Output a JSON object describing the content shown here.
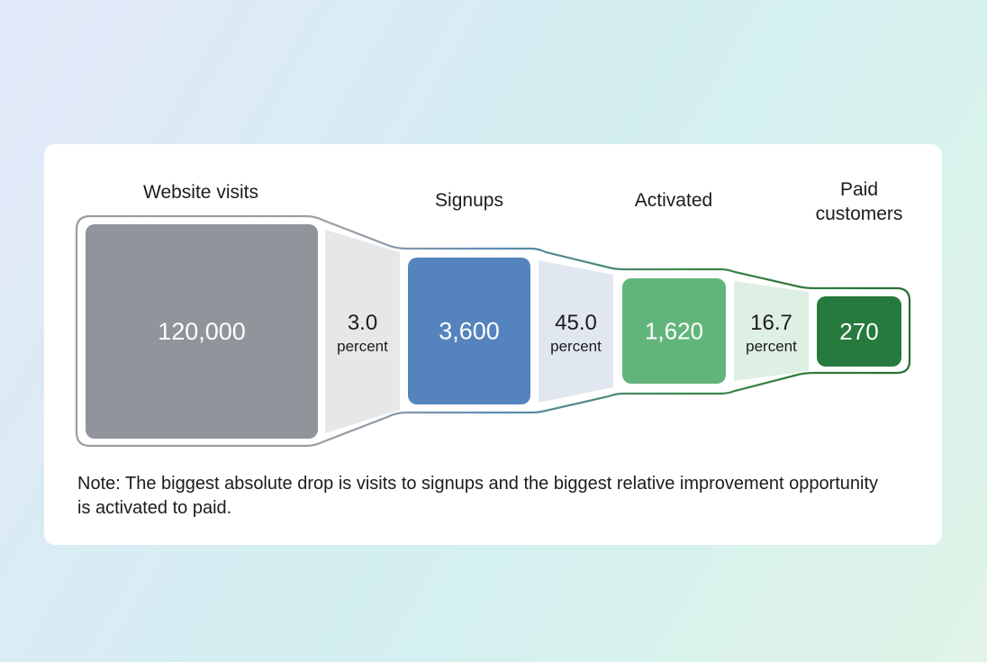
{
  "chart_data": {
    "type": "funnel",
    "stages": [
      {
        "name": "Website visits",
        "value": 120000,
        "value_label": "120,000",
        "color": "#90949b"
      },
      {
        "name": "Signups",
        "value": 3600,
        "value_label": "3,600",
        "color": "#5583bd"
      },
      {
        "name": "Activated",
        "value": 1620,
        "value_label": "1,620",
        "color": "#62b57a"
      },
      {
        "name": "Paid customers",
        "name_lines": [
          "Paid",
          "customers"
        ],
        "value": 270,
        "value_label": "270",
        "color": "#277a3d"
      }
    ],
    "conversions": [
      {
        "value": "3.0",
        "unit": "percent",
        "color": "#e6e7e9"
      },
      {
        "value": "45.0",
        "unit": "percent",
        "color": "#e1e7f1"
      },
      {
        "value": "16.7",
        "unit": "percent",
        "color": "#deefe3"
      }
    ],
    "outline_colors": [
      "#9a9da3",
      "#5f8bb8",
      "#3c8a4e",
      "#2a6e36"
    ]
  },
  "note": "Note: The biggest absolute drop is visits to signups and the biggest relative improvement opportunity is activated to paid."
}
